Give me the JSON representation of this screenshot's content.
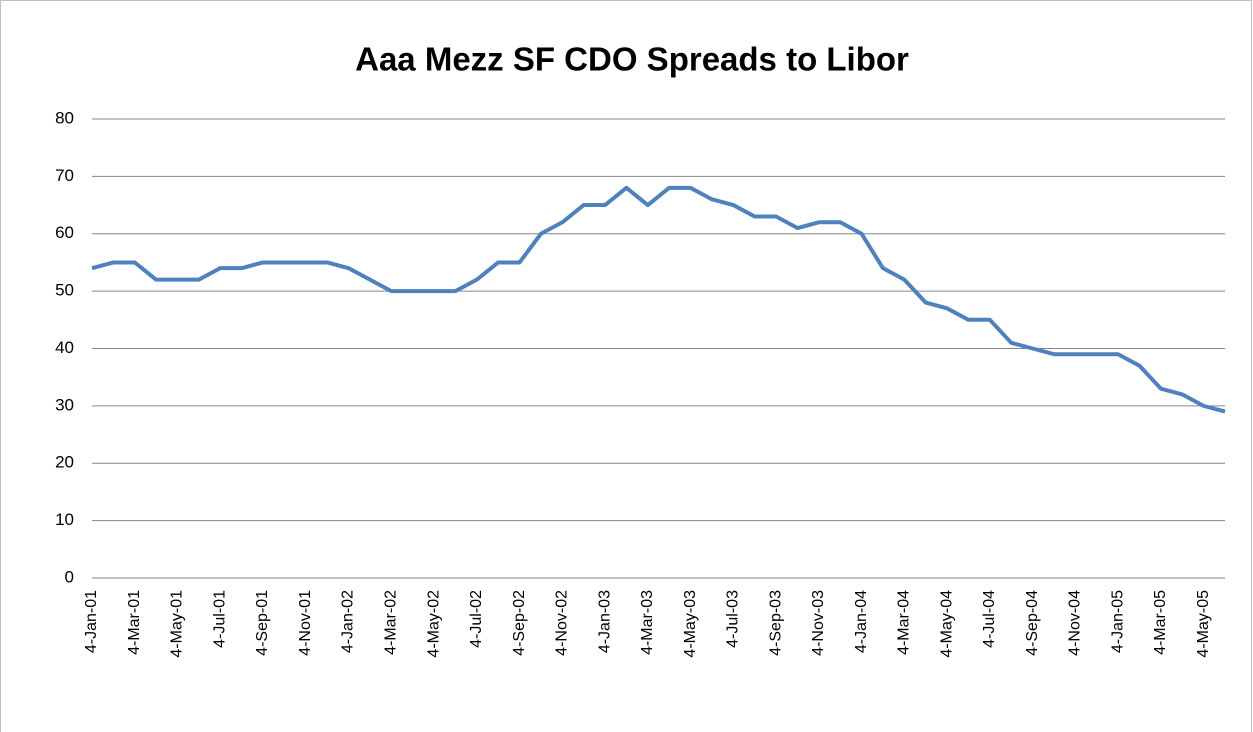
{
  "chart_data": {
    "type": "line",
    "title": "Aaa Mezz SF CDO Spreads to Libor",
    "categories": [
      "4-Jan-01",
      null,
      "4-Mar-01",
      null,
      "4-May-01",
      null,
      "4-Jul-01",
      null,
      "4-Sep-01",
      null,
      "4-Nov-01",
      null,
      "4-Jan-02",
      null,
      "4-Mar-02",
      null,
      "4-May-02",
      null,
      "4-Jul-02",
      null,
      "4-Sep-02",
      null,
      "4-Nov-02",
      null,
      "4-Jan-03",
      null,
      "4-Mar-03",
      null,
      "4-May-03",
      null,
      "4-Jul-03",
      null,
      "4-Sep-03",
      null,
      "4-Nov-03",
      null,
      "4-Jan-04",
      null,
      "4-Mar-04",
      null,
      "4-May-04",
      null,
      "4-Jul-04",
      null,
      "4-Sep-04",
      null,
      "4-Nov-04",
      null,
      "4-Jan-05",
      null,
      "4-Mar-05",
      null,
      "4-May-05",
      null
    ],
    "series": [
      {
        "name": "Aaa Mezz SF CDO",
        "color": "#4f81bd",
        "values": [
          54,
          55,
          55,
          52,
          52,
          52,
          54,
          54,
          55,
          55,
          55,
          55,
          54,
          52,
          50,
          50,
          50,
          50,
          52,
          55,
          55,
          60,
          62,
          65,
          65,
          68,
          65,
          68,
          68,
          66,
          65,
          63,
          63,
          61,
          62,
          62,
          60,
          54,
          52,
          48,
          47,
          45,
          45,
          41,
          40,
          39,
          39,
          39,
          39,
          37,
          33,
          32,
          30,
          29
        ]
      }
    ],
    "ylim": [
      0,
      80
    ],
    "yticks": [
      0,
      10,
      20,
      30,
      40,
      50,
      60,
      70,
      80
    ],
    "grid": true
  }
}
